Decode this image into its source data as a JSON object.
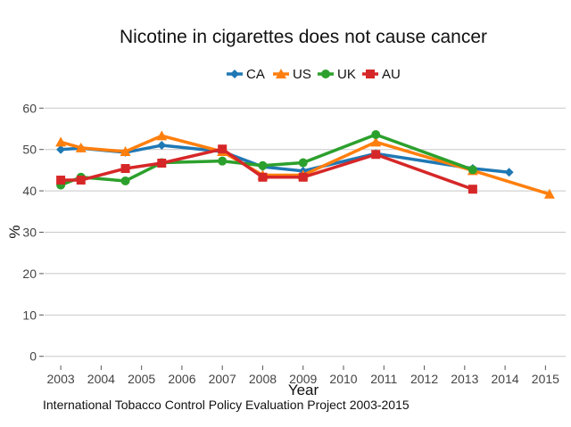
{
  "chart_data": {
    "type": "line",
    "title": "Nicotine in cigarettes does not cause cancer",
    "xlabel": "Year",
    "ylabel": "%",
    "xlim": [
      2002.6,
      2015.5
    ],
    "ylim": [
      -2,
      62
    ],
    "xticks": [
      2003,
      2004,
      2005,
      2006,
      2007,
      2008,
      2009,
      2010,
      2011,
      2012,
      2013,
      2014,
      2015
    ],
    "yticks": [
      0,
      10,
      20,
      30,
      40,
      50,
      60
    ],
    "grid": "horizontal",
    "legend_position": "top",
    "series": [
      {
        "name": "CA",
        "color": "#1f78b4",
        "marker": "diamond",
        "x": [
          2003.0,
          2003.5,
          2004.6,
          2005.5,
          2007.0,
          2008.0,
          2009.0,
          2010.8,
          2013.2,
          2014.1
        ],
        "y": [
          50.0,
          50.3,
          49.3,
          51.0,
          49.5,
          45.8,
          44.8,
          49.0,
          45.4,
          44.5
        ]
      },
      {
        "name": "US",
        "color": "#ff7f0e",
        "marker": "triangle",
        "x": [
          2003.0,
          2003.5,
          2004.6,
          2005.5,
          2007.0,
          2008.0,
          2009.0,
          2010.8,
          2013.2,
          2015.1
        ],
        "y": [
          51.8,
          50.4,
          49.5,
          53.3,
          49.5,
          43.8,
          43.8,
          51.8,
          44.9,
          39.2
        ]
      },
      {
        "name": "UK",
        "color": "#2ca02c",
        "marker": "circle",
        "x": [
          2003.0,
          2003.5,
          2004.6,
          2005.5,
          2007.0,
          2008.0,
          2009.0,
          2010.8,
          2013.2
        ],
        "y": [
          41.4,
          43.3,
          42.4,
          46.8,
          47.2,
          46.1,
          46.8,
          53.6,
          45.1
        ]
      },
      {
        "name": "AU",
        "color": "#d62728",
        "marker": "square",
        "x": [
          2003.0,
          2003.5,
          2004.6,
          2005.5,
          2007.0,
          2008.0,
          2009.0,
          2010.8,
          2013.2
        ],
        "y": [
          42.6,
          42.6,
          45.4,
          46.7,
          50.1,
          43.3,
          43.3,
          48.8,
          40.4
        ]
      }
    ],
    "caption": "International Tobacco Control Policy Evaluation Project 2003-2015"
  }
}
